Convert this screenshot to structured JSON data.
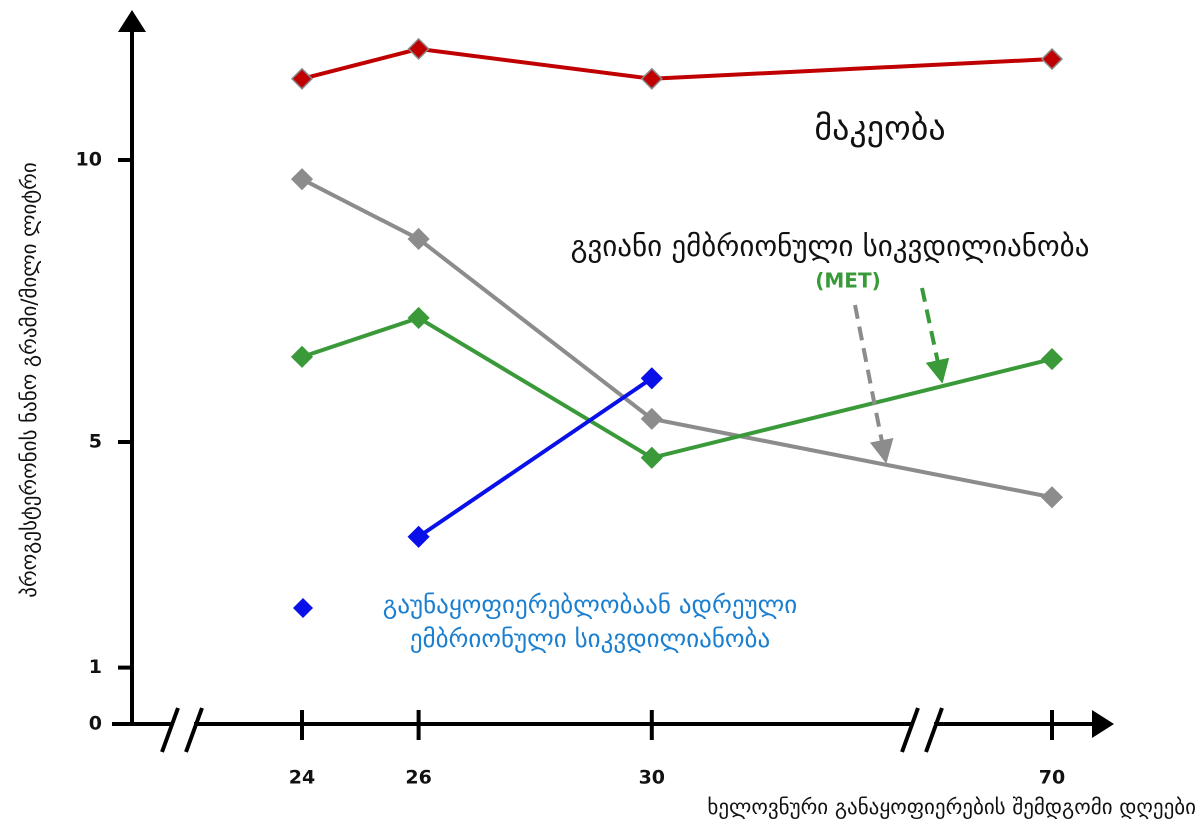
{
  "chart_data": {
    "type": "line",
    "y_label": "პროგესტერონის ნანო გრამი/მილი ლიტრი",
    "x_label": "ხელოვნური განაყოფიერების შემდგომი დღეები",
    "x": [
      24,
      26,
      30,
      70
    ],
    "xticks": [
      24,
      26,
      30,
      70
    ],
    "ylim": [
      0,
      12.5
    ],
    "yticks": [
      0,
      1,
      5,
      10
    ],
    "series": [
      {
        "name": "მაკეობა",
        "color": "#c00000",
        "values": [
          11.44,
          11.97,
          11.44,
          11.79
        ]
      },
      {
        "name": "გვიანი ემბრიონული სიკვდილიანობა",
        "color": "#8c8c8c",
        "values": [
          9.66,
          8.6,
          5.41,
          4.02
        ]
      },
      {
        "name": "(MET)",
        "color": "#3a9a3a",
        "values": [
          6.51,
          7.2,
          4.72,
          6.47
        ]
      },
      {
        "name": "გაუნაყოფიერებლობაან ადრეული ემბრიონული სიკვდილიანობა",
        "color": "#0a10e8",
        "values": [
          null,
          3.32,
          6.13,
          null
        ]
      }
    ]
  }
}
